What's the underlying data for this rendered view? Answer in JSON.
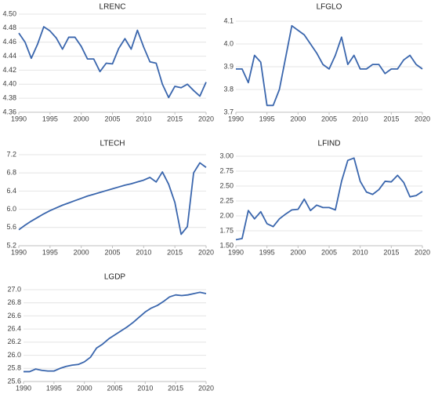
{
  "chart_data": [
    {
      "type": "line",
      "title": "LRENC",
      "color": "#3a66ad",
      "grid": true,
      "x": [
        1990,
        1991,
        1992,
        1993,
        1994,
        1995,
        1996,
        1997,
        1998,
        1999,
        2000,
        2001,
        2002,
        2003,
        2004,
        2005,
        2006,
        2007,
        2008,
        2009,
        2010,
        2011,
        2012,
        2013,
        2014,
        2015,
        2016,
        2017,
        2018,
        2019,
        2020
      ],
      "values": [
        4.473,
        4.46,
        4.437,
        4.457,
        4.482,
        4.476,
        4.466,
        4.45,
        4.467,
        4.467,
        4.454,
        4.436,
        4.436,
        4.418,
        4.43,
        4.429,
        4.451,
        4.465,
        4.45,
        4.477,
        4.453,
        4.432,
        4.43,
        4.4,
        4.381,
        4.397,
        4.395,
        4.4,
        4.391,
        4.383,
        4.403
      ],
      "xlim": [
        1990,
        2020
      ],
      "xticks": [
        1990,
        1995,
        2000,
        2005,
        2010,
        2015,
        2020
      ],
      "ylim": [
        4.36,
        4.5
      ],
      "yticks": [
        4.36,
        4.38,
        {
          "value": 4.4,
          "label": "4.40"
        },
        4.42,
        4.44,
        4.46,
        4.48,
        {
          "value": 4.5,
          "label": "4.50"
        }
      ]
    },
    {
      "type": "line",
      "title": "LFGLO",
      "color": "#3a66ad",
      "grid": true,
      "x": [
        1990,
        1991,
        1992,
        1993,
        1994,
        1995,
        1996,
        1997,
        1998,
        1999,
        2000,
        2001,
        2002,
        2003,
        2004,
        2005,
        2006,
        2007,
        2008,
        2009,
        2010,
        2011,
        2012,
        2013,
        2014,
        2015,
        2016,
        2017,
        2018,
        2019,
        2020
      ],
      "values": [
        3.89,
        3.89,
        3.83,
        3.95,
        3.92,
        3.73,
        3.73,
        3.8,
        3.94,
        4.08,
        4.06,
        4.04,
        4.0,
        3.96,
        3.91,
        3.89,
        3.95,
        4.03,
        3.91,
        3.95,
        3.89,
        3.89,
        3.91,
        3.91,
        3.87,
        3.89,
        3.89,
        3.93,
        3.95,
        3.91,
        3.89
      ],
      "xlim": [
        1990,
        2020
      ],
      "xticks": [
        1990,
        1995,
        2000,
        2005,
        2010,
        2015,
        2020
      ],
      "ylim": [
        3.7,
        4.1
      ],
      "yticks": [
        3.7,
        3.8,
        3.9,
        {
          "value": 4,
          "label": "4.0"
        },
        4.1
      ]
    },
    {
      "type": "line",
      "title": "LTECH",
      "color": "#3a66ad",
      "grid": true,
      "x": [
        1990,
        1991,
        1992,
        1993,
        1994,
        1995,
        1996,
        1997,
        1998,
        1999,
        2000,
        2001,
        2002,
        2003,
        2004,
        2005,
        2006,
        2007,
        2008,
        2009,
        2010,
        2011,
        2012,
        2013,
        2014,
        2015,
        2016,
        2017,
        2018,
        2019,
        2020
      ],
      "values": [
        5.55,
        5.65,
        5.74,
        5.82,
        5.9,
        5.97,
        6.03,
        6.09,
        6.14,
        6.19,
        6.24,
        6.29,
        6.33,
        6.37,
        6.41,
        6.45,
        6.49,
        6.53,
        6.56,
        6.6,
        6.64,
        6.7,
        6.6,
        6.82,
        6.55,
        6.15,
        5.45,
        5.62,
        6.8,
        7.02,
        6.92
      ],
      "xlim": [
        1990,
        2020
      ],
      "xticks": [
        1990,
        1995,
        2000,
        2005,
        2010,
        2015,
        2020
      ],
      "ylim": [
        5.2,
        7.2
      ],
      "yticks": [
        5.2,
        5.6,
        {
          "value": 6,
          "label": "6.0"
        },
        6.4,
        6.8,
        7.2
      ]
    },
    {
      "type": "line",
      "title": "LFIND",
      "color": "#3a66ad",
      "grid": true,
      "x": [
        1990,
        1991,
        1992,
        1993,
        1994,
        1995,
        1996,
        1997,
        1998,
        1999,
        2000,
        2001,
        2002,
        2003,
        2004,
        2005,
        2006,
        2007,
        2008,
        2009,
        2010,
        2011,
        2012,
        2013,
        2014,
        2015,
        2016,
        2017,
        2018,
        2019,
        2020
      ],
      "values": [
        1.6,
        1.62,
        2.09,
        1.95,
        2.07,
        1.87,
        1.82,
        1.95,
        2.03,
        2.1,
        2.11,
        2.28,
        2.09,
        2.18,
        2.14,
        2.14,
        2.1,
        2.58,
        2.93,
        2.97,
        2.58,
        2.4,
        2.36,
        2.44,
        2.58,
        2.57,
        2.68,
        2.56,
        2.32,
        2.34,
        2.41
      ],
      "xlim": [
        1990,
        2020
      ],
      "xticks": [
        1990,
        1995,
        2000,
        2005,
        2010,
        2015,
        2020
      ],
      "ylim": [
        1.5,
        3
      ],
      "yticks": [
        {
          "value": 1.5,
          "label": "1.50"
        },
        1.75,
        {
          "value": 2,
          "label": "2.00"
        },
        2.25,
        {
          "value": 2.5,
          "label": "2.50"
        },
        2.75,
        {
          "value": 3,
          "label": "3.00"
        }
      ]
    },
    {
      "type": "line",
      "title": "LGDP",
      "color": "#3a66ad",
      "grid": true,
      "x": [
        1990,
        1991,
        1992,
        1993,
        1994,
        1995,
        1996,
        1997,
        1998,
        1999,
        2000,
        2001,
        2002,
        2003,
        2004,
        2005,
        2006,
        2007,
        2008,
        2009,
        2010,
        2011,
        2012,
        2013,
        2014,
        2015,
        2016,
        2017,
        2018,
        2019,
        2020
      ],
      "values": [
        25.75,
        25.75,
        25.79,
        25.77,
        25.76,
        25.76,
        25.8,
        25.83,
        25.85,
        25.86,
        25.9,
        25.97,
        26.11,
        26.17,
        26.25,
        26.31,
        26.37,
        26.43,
        26.5,
        26.58,
        26.66,
        26.72,
        26.76,
        26.82,
        26.89,
        26.92,
        26.91,
        26.92,
        26.94,
        26.96,
        26.94
      ],
      "xlim": [
        1990,
        2020
      ],
      "xticks": [
        1990,
        1995,
        2000,
        2005,
        2010,
        2015,
        2020
      ],
      "ylim": [
        25.6,
        27
      ],
      "yticks": [
        25.6,
        25.8,
        {
          "value": 26,
          "label": "26.0"
        },
        26.2,
        26.4,
        26.6,
        26.8,
        {
          "value": 27,
          "label": "27.0"
        }
      ]
    }
  ]
}
